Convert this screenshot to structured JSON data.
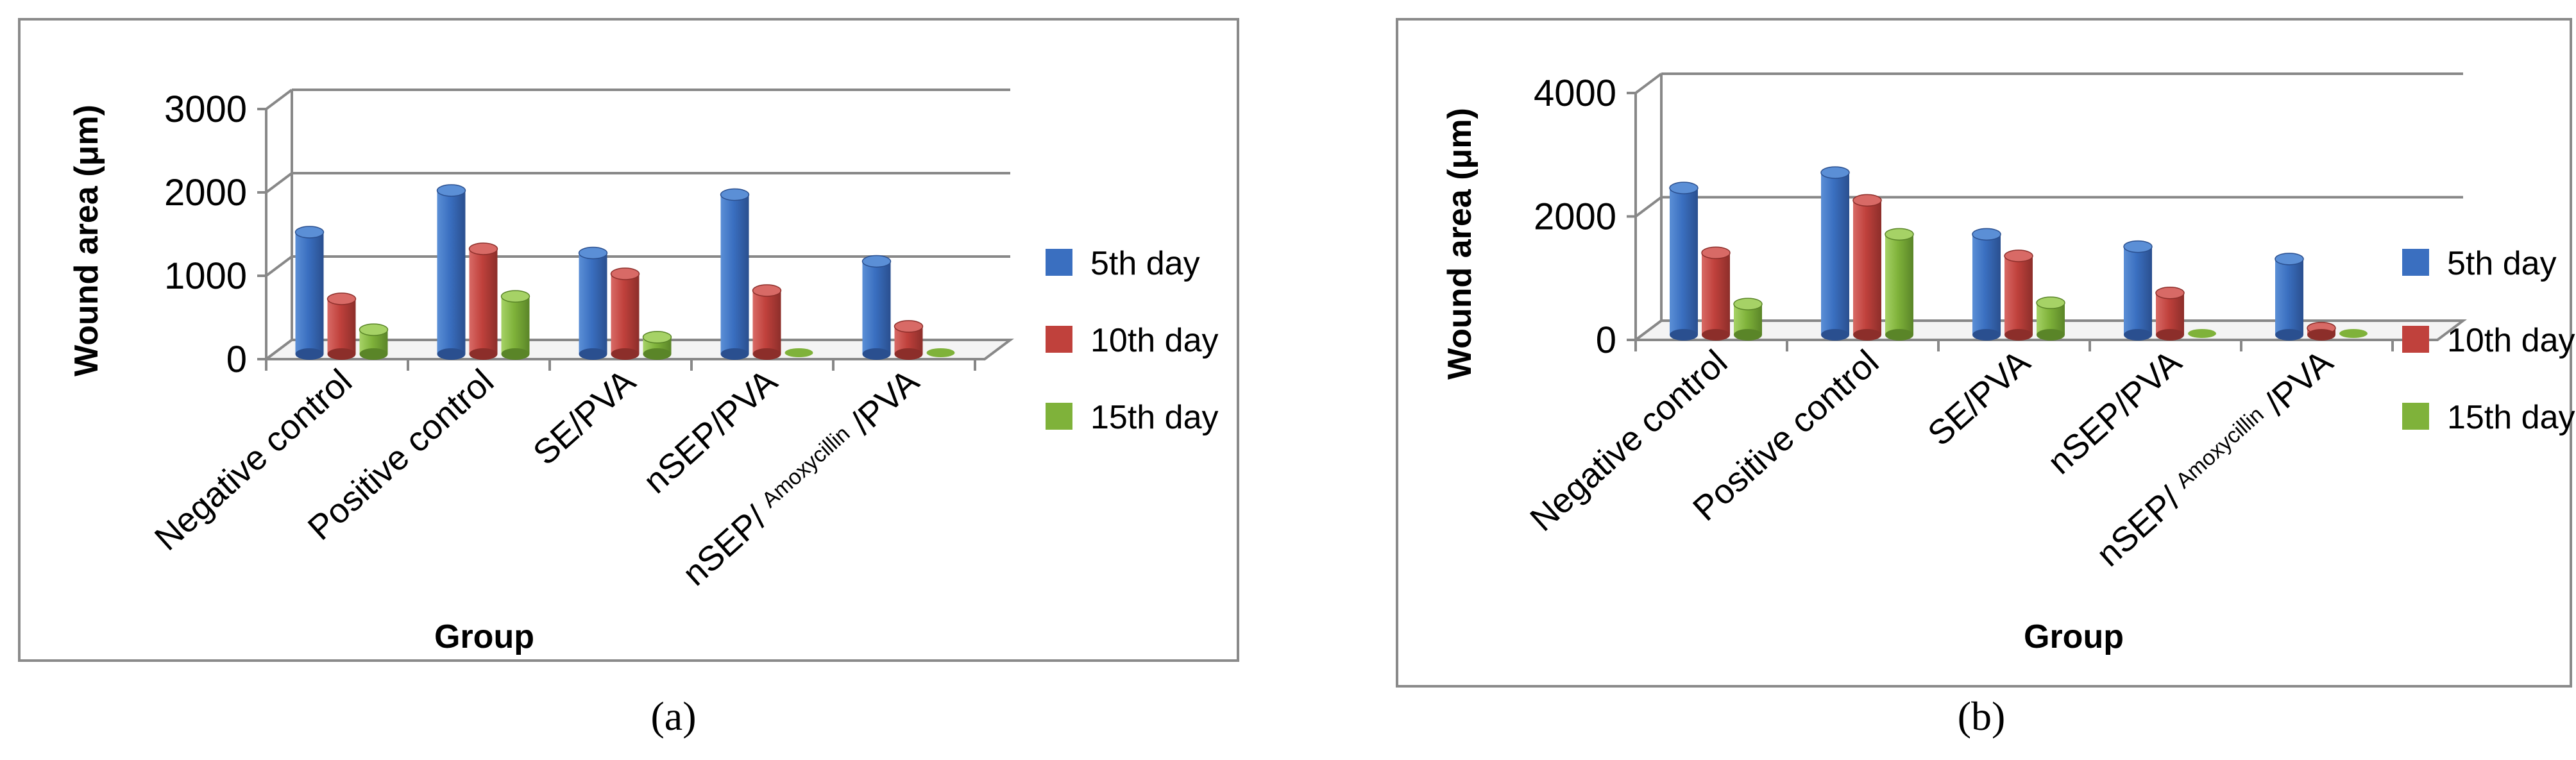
{
  "colors": {
    "5th": {
      "light": "#5b8fd6",
      "main": "#3a6fc0",
      "dark": "#2a4f8f"
    },
    "10th": {
      "light": "#d86a66",
      "main": "#c0413c",
      "dark": "#8c2e2a"
    },
    "15th": {
      "light": "#a6d266",
      "main": "#7fb23a",
      "dark": "#5a8528"
    }
  },
  "chart_data": [
    {
      "panel_label": "(a)",
      "type": "bar",
      "ylabel": "Wound area (μm)",
      "xlabel": "Group",
      "ylim": [
        0,
        3000
      ],
      "yticks": [
        0,
        1000,
        2000,
        3000
      ],
      "categories": [
        {
          "main": "Negative control",
          "small": ""
        },
        {
          "main": "Positive control",
          "small": ""
        },
        {
          "main": "SE/PVA",
          "small": ""
        },
        {
          "main": "nSEP/PVA",
          "small": ""
        },
        {
          "main": "nSEP/ ",
          "small": "Amoxycillin",
          "suffix": " /PVA"
        }
      ],
      "series": [
        {
          "name": "5th day",
          "key": "5th",
          "values": [
            1700,
            2200,
            1450,
            2150,
            1350
          ]
        },
        {
          "name": "10th day",
          "key": "10th",
          "values": [
            900,
            1500,
            1200,
            1000,
            570
          ]
        },
        {
          "name": "15th day",
          "key": "15th",
          "values": [
            530,
            930,
            440,
            0,
            0
          ]
        }
      ]
    },
    {
      "panel_label": "(b)",
      "type": "bar",
      "ylabel": "Wound area (μm)",
      "xlabel": "Group",
      "ylim": [
        0,
        4000
      ],
      "yticks": [
        0,
        2000,
        4000
      ],
      "categories": [
        {
          "main": "Negative control",
          "small": ""
        },
        {
          "main": "Positive control",
          "small": ""
        },
        {
          "main": "SE/PVA",
          "small": ""
        },
        {
          "main": "nSEP/PVA",
          "small": ""
        },
        {
          "main": "nSEP/ ",
          "small": "Amoxycillin",
          "suffix": " /PVA"
        }
      ],
      "series": [
        {
          "name": "5th day",
          "key": "5th",
          "values": [
            2700,
            2950,
            1950,
            1750,
            1550
          ]
        },
        {
          "name": "10th day",
          "key": "10th",
          "values": [
            1650,
            2500,
            1600,
            1000,
            430
          ]
        },
        {
          "name": "15th day",
          "key": "15th",
          "values": [
            820,
            1950,
            840,
            0,
            0
          ]
        }
      ]
    }
  ]
}
